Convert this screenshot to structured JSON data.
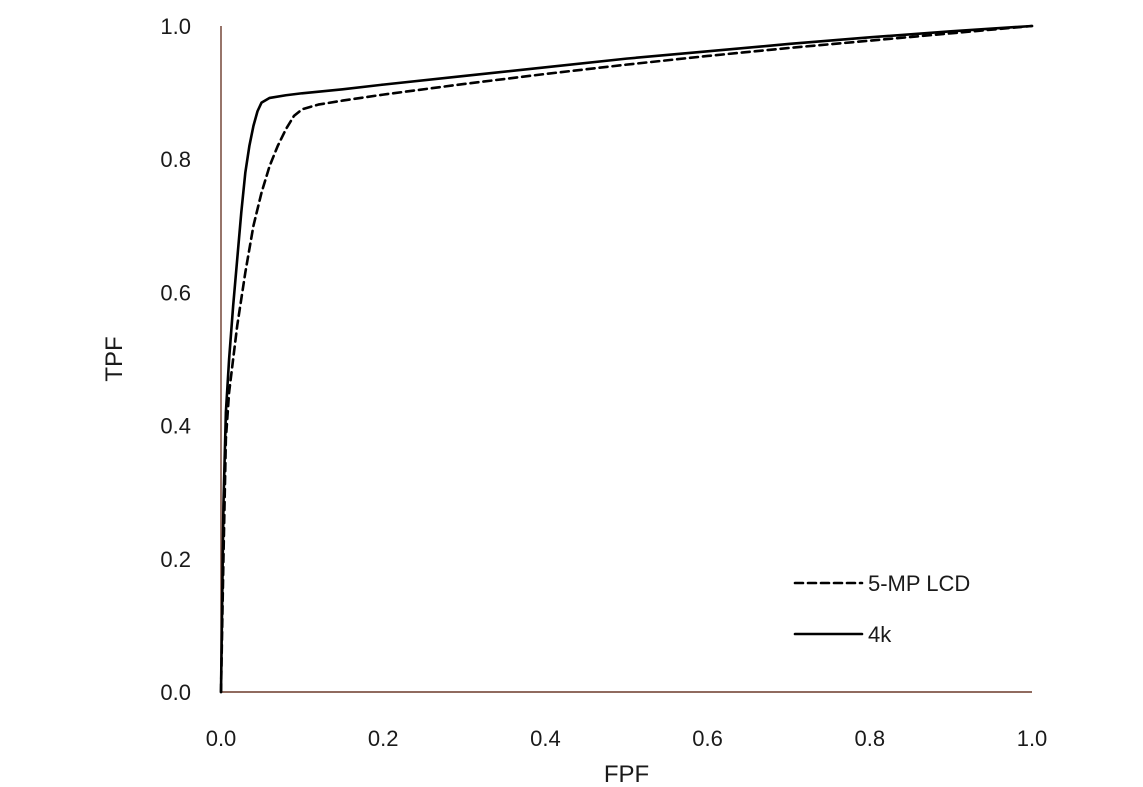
{
  "chart_data": {
    "type": "line",
    "title": "",
    "xlabel": "FPF",
    "ylabel": "TPF",
    "xlim": [
      0.0,
      1.0
    ],
    "ylim": [
      0.0,
      1.0
    ],
    "x_ticks": [
      "0.0",
      "0.2",
      "0.4",
      "0.6",
      "0.8",
      "1.0"
    ],
    "y_ticks": [
      "0.0",
      "0.2",
      "0.4",
      "0.6",
      "0.8",
      "1.0"
    ],
    "grid": false,
    "legend_position": "bottom-right",
    "series": [
      {
        "name": "5-MP LCD",
        "style": "dashed",
        "color": "#000000",
        "x": [
          0.0,
          0.003,
          0.006,
          0.01,
          0.015,
          0.02,
          0.03,
          0.04,
          0.05,
          0.06,
          0.07,
          0.08,
          0.09,
          0.1,
          0.12,
          0.15,
          0.2,
          0.3,
          0.4,
          0.5,
          0.6,
          0.7,
          0.8,
          0.9,
          1.0
        ],
        "y": [
          0.0,
          0.2,
          0.38,
          0.45,
          0.5,
          0.55,
          0.63,
          0.7,
          0.75,
          0.79,
          0.82,
          0.845,
          0.865,
          0.875,
          0.882,
          0.888,
          0.897,
          0.913,
          0.928,
          0.942,
          0.955,
          0.967,
          0.978,
          0.989,
          1.0
        ]
      },
      {
        "name": "4k",
        "style": "solid",
        "color": "#000000",
        "x": [
          0.0,
          0.003,
          0.006,
          0.01,
          0.015,
          0.02,
          0.025,
          0.03,
          0.035,
          0.04,
          0.045,
          0.05,
          0.06,
          0.08,
          0.1,
          0.15,
          0.2,
          0.3,
          0.4,
          0.5,
          0.6,
          0.7,
          0.8,
          0.9,
          1.0
        ],
        "y": [
          0.0,
          0.28,
          0.42,
          0.5,
          0.58,
          0.65,
          0.72,
          0.78,
          0.82,
          0.85,
          0.872,
          0.885,
          0.892,
          0.896,
          0.899,
          0.905,
          0.912,
          0.925,
          0.938,
          0.951,
          0.962,
          0.973,
          0.983,
          0.992,
          1.0
        ]
      }
    ]
  }
}
